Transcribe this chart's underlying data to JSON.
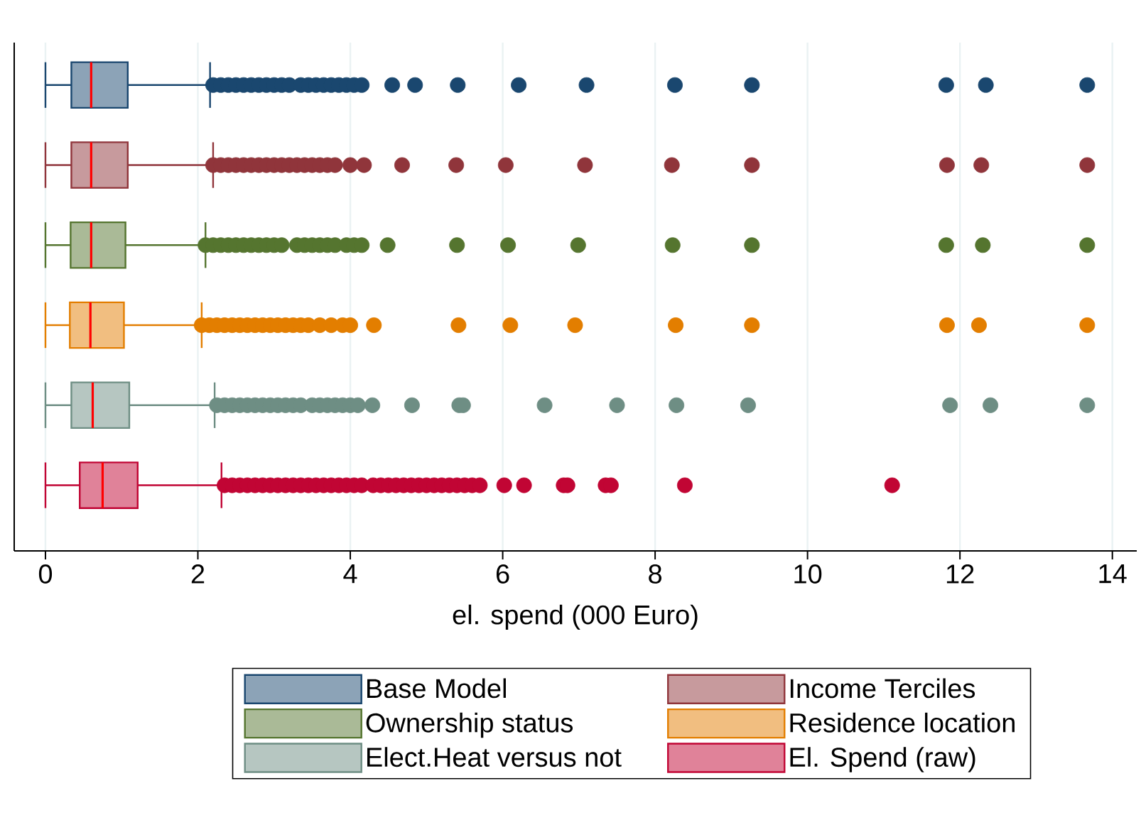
{
  "chart_data": {
    "type": "box",
    "orientation": "horizontal",
    "xlabel": "el. spend (000 Euro)",
    "categories": [
      null
    ],
    "xlim": [
      -0.41,
      14.32
    ],
    "xticks": [
      0,
      2,
      4,
      6,
      8,
      10,
      12,
      14
    ],
    "grid": "x",
    "legend": "bottom",
    "tick_labels": "x",
    "marker": "circle",
    "series": [
      {
        "name": "Base Model",
        "color": "#1a476f",
        "boxes": [
          {
            "low": 0,
            "q1": 0.34,
            "median": 0.6,
            "q3": 1.08,
            "high": 2.16,
            "outliers": [
              2.2,
              2.3,
              2.4,
              2.5,
              2.6,
              2.7,
              2.8,
              2.9,
              3.0,
              3.1,
              3.2,
              3.35,
              3.45,
              3.55,
              3.65,
              3.75,
              3.85,
              3.95,
              4.05,
              4.15,
              4.55,
              4.85,
              5.41,
              6.21,
              7.1,
              8.26,
              9.27,
              11.82,
              12.34,
              13.67
            ]
          }
        ]
      },
      {
        "name": "Income Terciles",
        "color": "#90353b",
        "boxes": [
          {
            "low": 0,
            "q1": 0.34,
            "median": 0.6,
            "q3": 1.08,
            "high": 2.2,
            "outliers": [
              2.2,
              2.3,
              2.4,
              2.5,
              2.6,
              2.7,
              2.8,
              2.9,
              3.0,
              3.1,
              3.2,
              3.3,
              3.4,
              3.5,
              3.6,
              3.7,
              3.8,
              4.0,
              4.18,
              4.68,
              5.39,
              6.04,
              7.08,
              8.22,
              9.27,
              11.83,
              12.28,
              13.67
            ]
          }
        ]
      },
      {
        "name": "Ownership status",
        "color": "#55752f",
        "boxes": [
          {
            "low": 0,
            "q1": 0.33,
            "median": 0.6,
            "q3": 1.05,
            "high": 2.1,
            "outliers": [
              2.1,
              2.2,
              2.3,
              2.4,
              2.5,
              2.6,
              2.7,
              2.8,
              2.9,
              3.0,
              3.1,
              3.3,
              3.4,
              3.5,
              3.6,
              3.7,
              3.8,
              3.95,
              4.05,
              4.15,
              4.49,
              5.4,
              6.07,
              6.99,
              8.23,
              9.27,
              11.82,
              12.3,
              13.67
            ]
          }
        ]
      },
      {
        "name": "Residence location",
        "color": "#e37e00",
        "boxes": [
          {
            "low": 0,
            "q1": 0.32,
            "median": 0.59,
            "q3": 1.03,
            "high": 2.05,
            "outliers": [
              2.05,
              2.15,
              2.25,
              2.35,
              2.45,
              2.55,
              2.65,
              2.75,
              2.85,
              2.95,
              3.05,
              3.15,
              3.25,
              3.35,
              3.45,
              3.6,
              3.75,
              3.9,
              4.0,
              4.31,
              5.42,
              6.1,
              6.95,
              8.27,
              9.27,
              11.83,
              12.25,
              13.67
            ]
          }
        ]
      },
      {
        "name": "Elect.Heat versus not",
        "color": "#6e8e84",
        "boxes": [
          {
            "low": 0,
            "q1": 0.34,
            "median": 0.62,
            "q3": 1.1,
            "high": 2.22,
            "outliers": [
              2.25,
              2.35,
              2.45,
              2.55,
              2.65,
              2.75,
              2.85,
              2.95,
              3.05,
              3.15,
              3.25,
              3.35,
              3.5,
              3.6,
              3.7,
              3.8,
              3.9,
              4.0,
              4.1,
              4.29,
              4.81,
              5.43,
              5.48,
              6.55,
              7.5,
              8.28,
              9.22,
              11.87,
              12.4,
              13.67
            ]
          }
        ]
      },
      {
        "name": "El. Spend (raw)",
        "color": "#c10534",
        "boxes": [
          {
            "low": 0,
            "q1": 0.45,
            "median": 0.75,
            "q3": 1.21,
            "high": 2.31,
            "outliers": [
              2.35,
              2.45,
              2.55,
              2.65,
              2.75,
              2.85,
              2.95,
              3.05,
              3.15,
              3.25,
              3.35,
              3.45,
              3.55,
              3.65,
              3.75,
              3.85,
              3.95,
              4.05,
              4.15,
              4.3,
              4.4,
              4.5,
              4.6,
              4.7,
              4.8,
              4.9,
              5.0,
              5.1,
              5.2,
              5.3,
              5.4,
              5.5,
              5.6,
              5.7,
              6.02,
              6.28,
              6.8,
              6.85,
              7.35,
              7.42,
              8.39,
              11.11
            ]
          }
        ]
      }
    ]
  }
}
